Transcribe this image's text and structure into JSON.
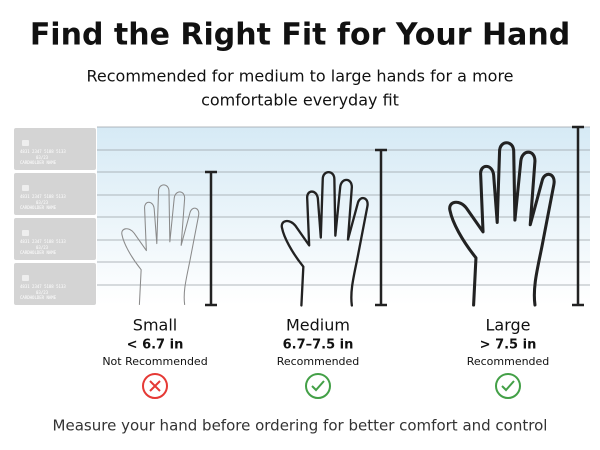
{
  "title": "Find the Right Fit for Your Hand",
  "subtitle": [
    "Recommended for medium to large hands for a more",
    "comfortable everyday fit"
  ],
  "card": {
    "number": "4831 2347 5188 5133",
    "expiry": "03/23",
    "name": "CARDHOLDER NAME"
  },
  "sizes": [
    {
      "name": "Small",
      "range": "< 6.7 in",
      "status": "Not Recommended"
    },
    {
      "name": "Medium",
      "range": "6.7–7.5 in",
      "status": "Recommended"
    },
    {
      "name": "Large",
      "range": "> 7.5 in",
      "status": "Recommended"
    }
  ],
  "footer": "Measure your hand before ordering for better comfort and control"
}
